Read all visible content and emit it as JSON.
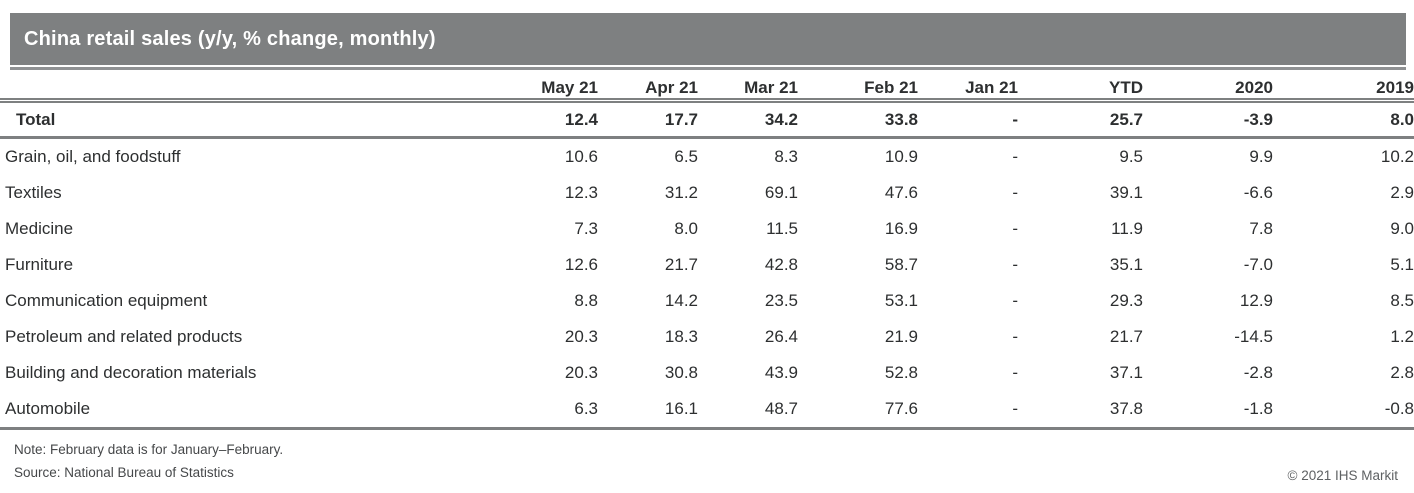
{
  "title": "China retail sales (y/y, % change, monthly)",
  "colors": {
    "title_bar_bg": "#7e8081",
    "title_text": "#ffffff",
    "rule": "#7e8081",
    "body_text": "#2d2f30",
    "footnote_text": "#46484a",
    "copyright_text": "#5e6163"
  },
  "chart_data": {
    "type": "table",
    "title": "China retail sales (y/y, % change, monthly)",
    "columns": [
      "May 21",
      "Apr 21",
      "Mar 21",
      "Feb 21",
      "Jan 21",
      "YTD",
      "2020",
      "2019"
    ],
    "rows": [
      {
        "label": "Total",
        "values": [
          "12.4",
          "17.7",
          "34.2",
          "33.8",
          "-",
          "25.7",
          "-3.9",
          "8.0"
        ]
      },
      {
        "label": "Grain, oil, and foodstuff",
        "values": [
          "10.6",
          "6.5",
          "8.3",
          "10.9",
          "-",
          "9.5",
          "9.9",
          "10.2"
        ]
      },
      {
        "label": "Textiles",
        "values": [
          "12.3",
          "31.2",
          "69.1",
          "47.6",
          "-",
          "39.1",
          "-6.6",
          "2.9"
        ]
      },
      {
        "label": "Medicine",
        "values": [
          "7.3",
          "8.0",
          "11.5",
          "16.9",
          "-",
          "11.9",
          "7.8",
          "9.0"
        ]
      },
      {
        "label": "Furniture",
        "values": [
          "12.6",
          "21.7",
          "42.8",
          "58.7",
          "-",
          "35.1",
          "-7.0",
          "5.1"
        ]
      },
      {
        "label": "Communication equipment",
        "values": [
          "8.8",
          "14.2",
          "23.5",
          "53.1",
          "-",
          "29.3",
          "12.9",
          "8.5"
        ]
      },
      {
        "label": "Petroleum and related products",
        "values": [
          "20.3",
          "18.3",
          "26.4",
          "21.9",
          "-",
          "21.7",
          "-14.5",
          "1.2"
        ]
      },
      {
        "label": "Building and decoration materials",
        "values": [
          "20.3",
          "30.8",
          "43.9",
          "52.8",
          "-",
          "37.1",
          "-2.8",
          "2.8"
        ]
      },
      {
        "label": "Automobile",
        "values": [
          "6.3",
          "16.1",
          "48.7",
          "77.6",
          "-",
          "37.8",
          "-1.8",
          "-0.8"
        ]
      }
    ],
    "note": "Note: February data is for January–February.",
    "source": "Source: National Bureau of Statistics",
    "copyright": "© 2021 IHS Markit"
  }
}
